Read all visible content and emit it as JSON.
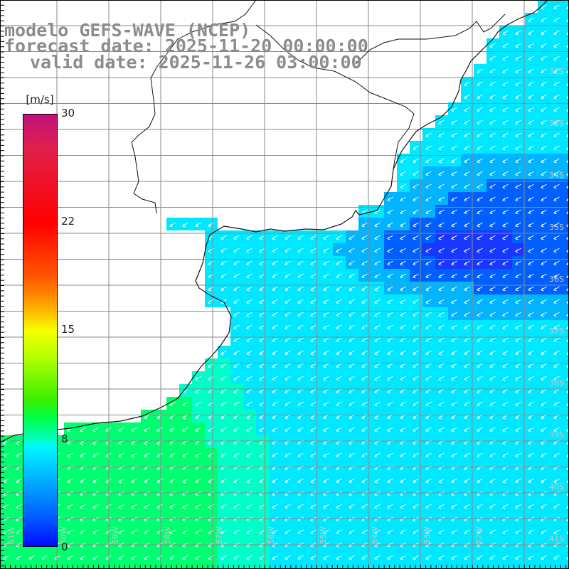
{
  "header": {
    "model": "modelo GEFS-WAVE (NCEP)",
    "forecast": "forecast date: 2025-11-20 00:00:00",
    "valid": "valid date: 2025-11-26 03:00:00"
  },
  "colorbar": {
    "units": "[m/s]",
    "ticks": [
      "30",
      "22",
      "15",
      "8",
      "0"
    ],
    "min": 0,
    "max": 30
  },
  "map": {
    "variable": "wind speed and direction",
    "lat_labels": [
      "32S",
      "33S",
      "34S",
      "35S",
      "36S",
      "37S",
      "38S",
      "39S",
      "40S",
      "41S"
    ],
    "lon_labels": [
      "61W",
      "60W",
      "59W",
      "58W",
      "57W",
      "56W",
      "55W",
      "54W",
      "53W",
      "52W"
    ],
    "ocean_colors": [
      "#00ff70",
      "#00ffc8",
      "#00e8ff",
      "#00b4ff",
      "#0060ff",
      "#1838ff"
    ],
    "arrow_color": "#ffffff",
    "grid_color": "#8a8a8a",
    "label_color": "#c8c8c8"
  }
}
